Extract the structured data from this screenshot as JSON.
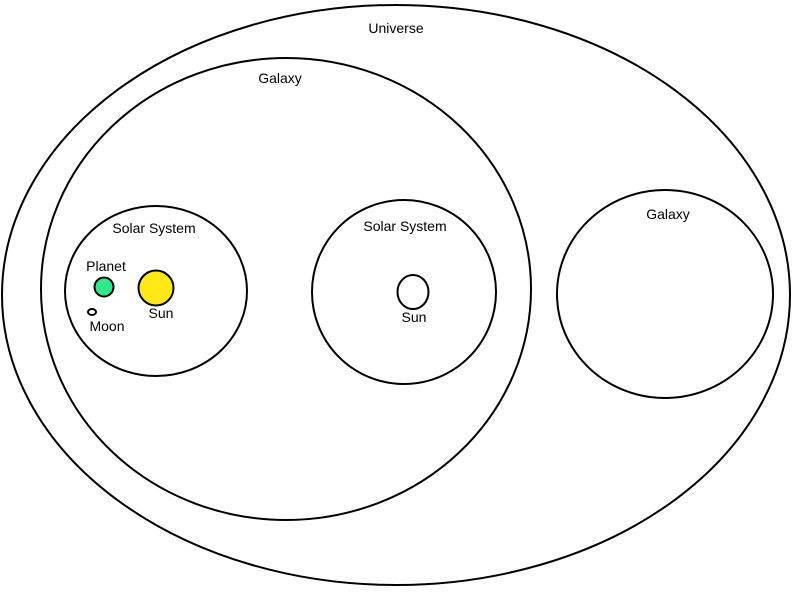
{
  "diagram": {
    "universe": {
      "label": "Universe"
    },
    "galaxy_main": {
      "label": "Galaxy"
    },
    "solar_system_left": {
      "label": "Solar System",
      "planet": {
        "label": "Planet",
        "color": "#2ee88a"
      },
      "moon": {
        "label": "Moon"
      },
      "sun": {
        "label": "Sun",
        "color": "#ffe816"
      }
    },
    "solar_system_middle": {
      "label": "Solar System",
      "sun": {
        "label": "Sun",
        "color": "#ffffff"
      }
    },
    "galaxy_right": {
      "label": "Galaxy"
    }
  }
}
